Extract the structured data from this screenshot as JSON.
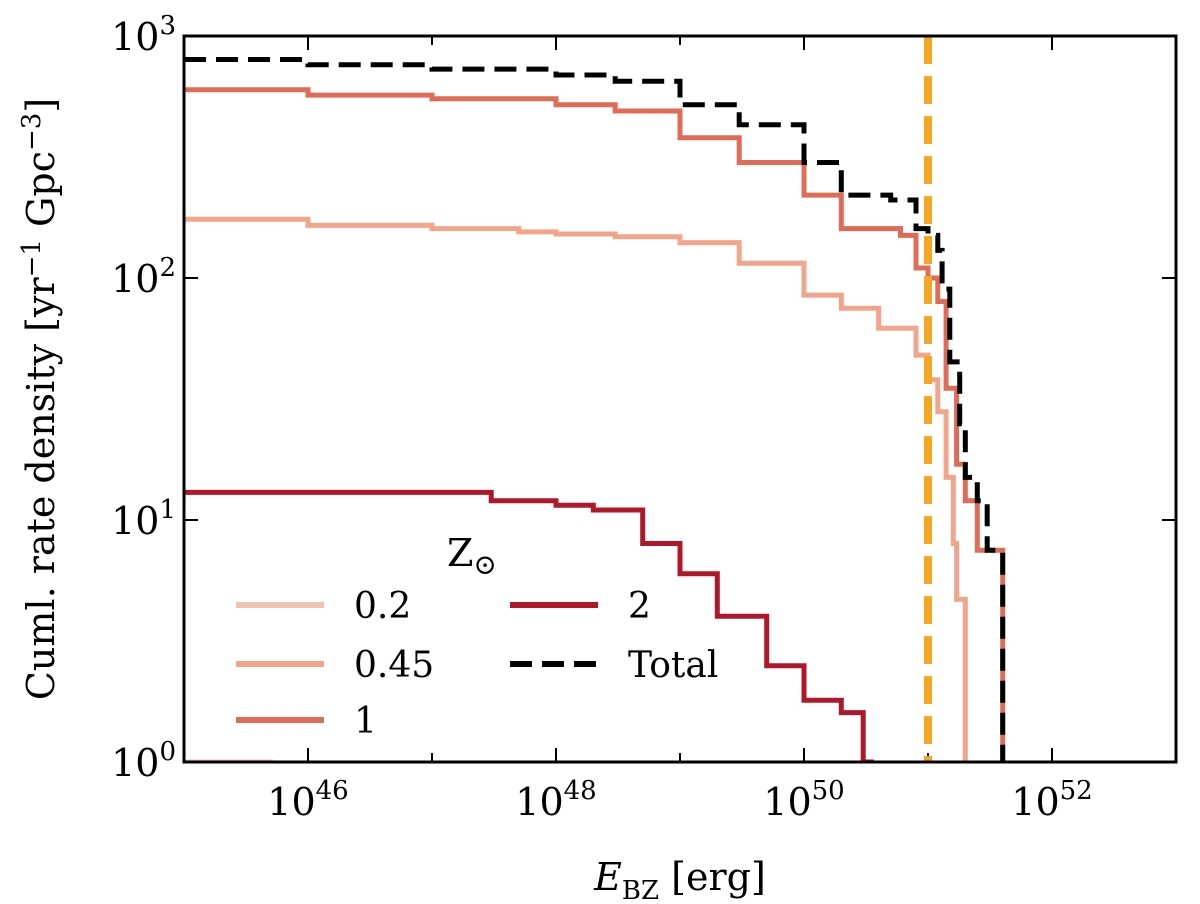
{
  "chart_data": {
    "type": "line",
    "xscale": "log",
    "yscale": "log",
    "xlim": [
      1e+45,
      1e+53
    ],
    "ylim": [
      1,
      1000
    ],
    "xlabel": {
      "main": "E",
      "sub": "BZ",
      "unit": " [erg]"
    },
    "ylabel": {
      "pre": "Cuml. rate density [yr",
      "sup1": "−1",
      "mid": " Gpc",
      "sup2": "−3",
      "post": "]"
    },
    "xticks": [
      {
        "value": 1e+46,
        "base": "10",
        "exp": "46"
      },
      {
        "value": 1e+48,
        "base": "10",
        "exp": "48"
      },
      {
        "value": 1e+50,
        "base": "10",
        "exp": "50"
      },
      {
        "value": 1e+52,
        "base": "10",
        "exp": "52"
      }
    ],
    "yticks": [
      {
        "value": 1,
        "base": "10",
        "exp": "0"
      },
      {
        "value": 10,
        "base": "10",
        "exp": "1"
      },
      {
        "value": 100,
        "base": "10",
        "exp": "2"
      },
      {
        "value": 1000,
        "base": "10",
        "exp": "3"
      }
    ],
    "vline": {
      "x": 1e+51,
      "color": "#f5a623",
      "style": "dashed"
    },
    "legend": {
      "title": "Z",
      "title_symbol": "⊙",
      "placement": "lower-left"
    },
    "series": [
      {
        "name": "0.2",
        "color": "#efc4b4",
        "style": "solid",
        "points": [
          [
            1e+45,
            1.0
          ],
          [
            5e+45,
            1.0
          ],
          [
            5e+45,
            0.9
          ]
        ]
      },
      {
        "name": "0.45",
        "color": "#f2a58a",
        "style": "solid",
        "points": [
          [
            1e+45,
            175
          ],
          [
            1e+46,
            165
          ],
          [
            1e+47,
            160
          ],
          [
            5e+47,
            155
          ],
          [
            1e+48,
            152
          ],
          [
            3e+48,
            148
          ],
          [
            1e+49,
            140
          ],
          [
            3e+49,
            115
          ],
          [
            1e+50,
            85
          ],
          [
            2e+50,
            75
          ],
          [
            4e+50,
            62
          ],
          [
            8e+50,
            48
          ],
          [
            1e+51,
            38
          ],
          [
            1.2e+51,
            28
          ],
          [
            1.4e+51,
            15
          ],
          [
            1.6e+51,
            8
          ],
          [
            1.7e+51,
            4.7
          ],
          [
            2e+51,
            4.7
          ],
          [
            2e+51,
            0.9
          ]
        ]
      },
      {
        "name": "1",
        "color": "#e06c58",
        "style": "solid",
        "points": [
          [
            1e+45,
            600
          ],
          [
            1e+46,
            570
          ],
          [
            1e+47,
            550
          ],
          [
            1e+48,
            520
          ],
          [
            3e+48,
            490
          ],
          [
            1e+49,
            380
          ],
          [
            3e+49,
            300
          ],
          [
            1e+50,
            220
          ],
          [
            2e+50,
            160
          ],
          [
            6e+50,
            150
          ],
          [
            8e+50,
            110
          ],
          [
            1e+51,
            100
          ],
          [
            1.2e+51,
            80
          ],
          [
            1.4e+51,
            35
          ],
          [
            1.7e+51,
            17
          ],
          [
            2e+51,
            12
          ],
          [
            2.5e+51,
            7.5
          ],
          [
            4e+51,
            7.5
          ],
          [
            4e+51,
            0.9
          ]
        ]
      },
      {
        "name": "2",
        "color": "#b0182a",
        "style": "solid",
        "points": [
          [
            1e+45,
            13
          ],
          [
            1e+46,
            13
          ],
          [
            3e+46,
            13
          ],
          [
            1e+47,
            13
          ],
          [
            3e+47,
            12
          ],
          [
            1e+48,
            11.5
          ],
          [
            2e+48,
            11
          ],
          [
            5e+48,
            8
          ],
          [
            1e+49,
            6
          ],
          [
            2e+49,
            4
          ],
          [
            5e+49,
            2.5
          ],
          [
            1e+50,
            1.8
          ],
          [
            2e+50,
            1.6
          ],
          [
            3e+50,
            1.0
          ],
          [
            3.5e+50,
            1.0
          ],
          [
            3.5e+50,
            0.9
          ]
        ]
      },
      {
        "name": "Total",
        "color": "#000000",
        "style": "dashed",
        "points": [
          [
            1e+45,
            800
          ],
          [
            1e+46,
            760
          ],
          [
            1e+47,
            730
          ],
          [
            1e+48,
            690
          ],
          [
            3e+48,
            650
          ],
          [
            1e+49,
            520
          ],
          [
            3e+49,
            430
          ],
          [
            1e+50,
            300
          ],
          [
            2e+50,
            220
          ],
          [
            5e+50,
            210
          ],
          [
            8e+50,
            160
          ],
          [
            1e+51,
            150
          ],
          [
            1.2e+51,
            130
          ],
          [
            1.3e+51,
            90
          ],
          [
            1.5e+51,
            45
          ],
          [
            1.8e+51,
            25
          ],
          [
            2e+51,
            15
          ],
          [
            2.5e+51,
            12
          ],
          [
            3e+51,
            7.5
          ],
          [
            4e+51,
            7.5
          ],
          [
            4e+51,
            0.9
          ]
        ]
      }
    ]
  }
}
